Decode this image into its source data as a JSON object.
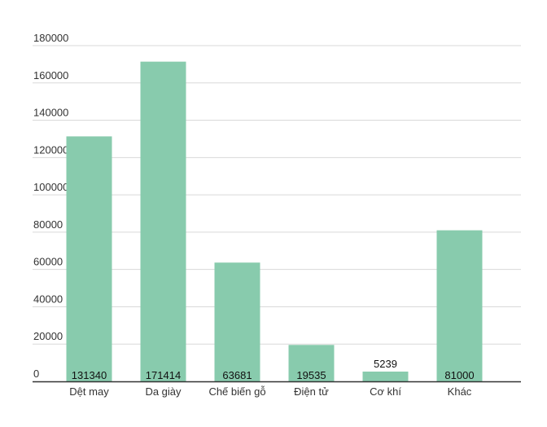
{
  "chart_data": {
    "type": "bar",
    "title": "",
    "xlabel": "",
    "ylabel": "",
    "categories": [
      "Dệt may",
      "Da giày",
      "Chế biến gỗ",
      "Điện tử",
      "Cơ khí",
      "Khác"
    ],
    "values": [
      131340,
      171414,
      63681,
      19535,
      5239,
      81000
    ],
    "value_labels": [
      "131340",
      "171414",
      "63681",
      "19535",
      "5239",
      "81000"
    ],
    "ylim": [
      0,
      180000
    ],
    "yticks": [
      "0",
      "20000",
      "40000",
      "60000",
      "80000",
      "100000",
      "120000",
      "140000",
      "160000",
      "180000"
    ],
    "grid": true,
    "legend": "none",
    "bar_color": "#88cbad"
  }
}
